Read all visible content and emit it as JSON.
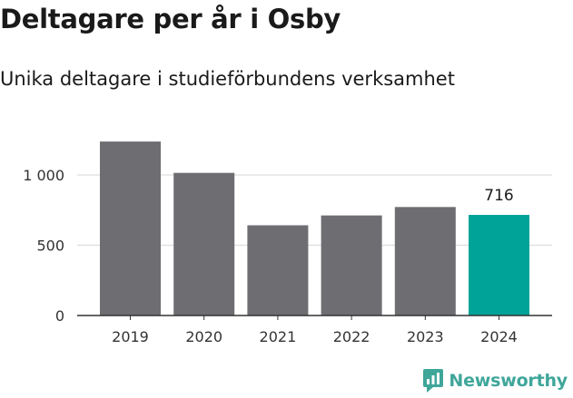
{
  "header": {
    "title": "Deltagare per år i Osby",
    "subtitle": "Unika deltagare i studieförbundens verksamhet"
  },
  "brand": {
    "name": "Newsworthy",
    "icon": "newsworthy-logo-icon",
    "color": "#3fa69a"
  },
  "chart_data": {
    "type": "bar",
    "categories": [
      "2019",
      "2020",
      "2021",
      "2022",
      "2023",
      "2024"
    ],
    "values": [
      1238,
      1015,
      642,
      712,
      772,
      716
    ],
    "highlight_index": 5,
    "highlight_label": "716",
    "ylim": [
      0,
      1250
    ],
    "yticks": [
      0,
      500,
      1000
    ],
    "ytick_labels": [
      "0",
      "500",
      "1 000"
    ],
    "grid": true,
    "colors": {
      "bar": "#6e6d72",
      "highlight": "#00a398",
      "grid": "#dddddd",
      "axis": "#333333"
    }
  }
}
